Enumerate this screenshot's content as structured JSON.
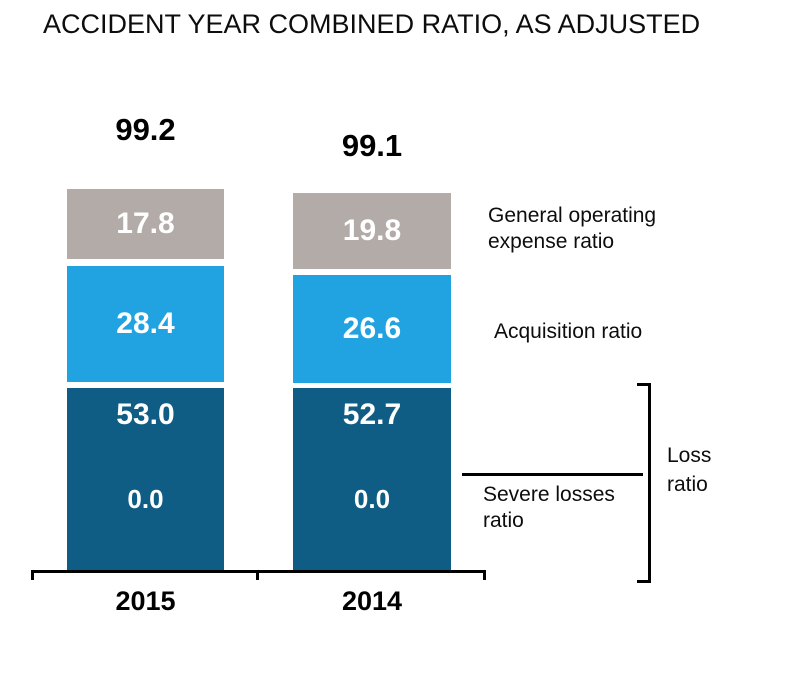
{
  "title": "ACCIDENT YEAR COMBINED RATIO, AS ADJUSTED",
  "chart_data": {
    "type": "bar",
    "stacked": true,
    "title": "ACCIDENT YEAR COMBINED RATIO, AS ADJUSTED",
    "categories": [
      "2015",
      "2014"
    ],
    "series": [
      {
        "name": "General operating expense ratio",
        "values": [
          17.8,
          19.8
        ],
        "color": "#b2aba7"
      },
      {
        "name": "Acquisition ratio",
        "values": [
          28.4,
          26.6
        ],
        "color": "#21a3e2"
      },
      {
        "name": "Loss ratio",
        "values": [
          53.0,
          52.7
        ],
        "color": "#0f5c84"
      },
      {
        "name": "Severe losses ratio",
        "values": [
          0.0,
          0.0
        ],
        "color": "#0f5c84"
      }
    ],
    "totals": [
      99.2,
      99.1
    ],
    "value_labels": "inside-white-bold",
    "totals_position": "above-bars",
    "legend_position": "right-annotations",
    "axis": "x-only",
    "grid": false
  },
  "bars": [
    {
      "year": "2015",
      "total": "99.2",
      "general": "17.8",
      "acquisition": "28.4",
      "loss": "53.0",
      "severe": "0.0"
    },
    {
      "year": "2014",
      "total": "99.1",
      "general": "19.8",
      "acquisition": "26.6",
      "loss": "52.7",
      "severe": "0.0"
    }
  ],
  "annotations": {
    "general_operating": "General operating expense ratio",
    "acquisition": "Acquisition ratio",
    "severe_losses": "Severe losses ratio",
    "loss_ratio": "Loss ratio"
  },
  "colors": {
    "general_segment": "#b2aba7",
    "acquisition_segment": "#21a3e2",
    "loss_segment": "#0f5c84",
    "axis": "#000000",
    "text": "#000000",
    "value_text": "#ffffff"
  }
}
